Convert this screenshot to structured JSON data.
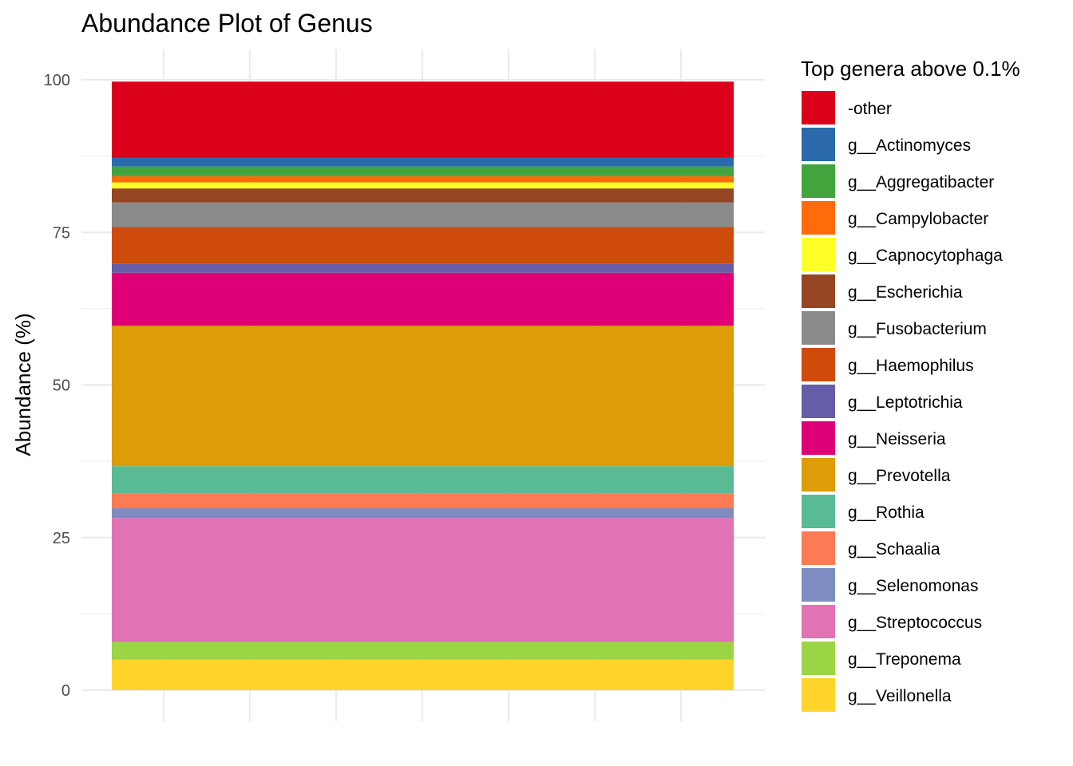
{
  "chart_data": {
    "type": "bar",
    "stacked": true,
    "title": "Abundance Plot of Genus",
    "ylabel": "Abundance (%)",
    "xlabel": "",
    "ylim": [
      0,
      100
    ],
    "yticks": [
      "0",
      "25",
      "50",
      "75",
      "100"
    ],
    "ytick_values": [
      0,
      25,
      50,
      75,
      100
    ],
    "grid": true,
    "legend_title": "Top genera above 0.1%",
    "legend_position": "right",
    "series": [
      {
        "name": "-other",
        "value": 12.5,
        "color": "#DC011A"
      },
      {
        "name": "g__Actinomyces",
        "value": 1.4,
        "color": "#2B6AAA"
      },
      {
        "name": "g__Aggregatibacter",
        "value": 1.6,
        "color": "#42A43D"
      },
      {
        "name": "g__Campylobacter",
        "value": 1.0,
        "color": "#FF6A0A"
      },
      {
        "name": "g__Capnocytophaga",
        "value": 1.0,
        "color": "#FFFF27"
      },
      {
        "name": "g__Escherichia",
        "value": 2.3,
        "color": "#954521"
      },
      {
        "name": "g__Fusobacterium",
        "value": 4.0,
        "color": "#8A8A8A"
      },
      {
        "name": "g__Haemophilus",
        "value": 6.0,
        "color": "#CE4B0C"
      },
      {
        "name": "g__Leptotrichia",
        "value": 1.5,
        "color": "#665DA8"
      },
      {
        "name": "g__Neisseria",
        "value": 8.7,
        "color": "#DF0078"
      },
      {
        "name": "g__Prevotella",
        "value": 23.0,
        "color": "#DE9D07"
      },
      {
        "name": "g__Rothia",
        "value": 4.5,
        "color": "#58BB93"
      },
      {
        "name": "g__Schaalia",
        "value": 2.4,
        "color": "#FB7B54"
      },
      {
        "name": "g__Selenomonas",
        "value": 1.6,
        "color": "#7D8CC1"
      },
      {
        "name": "g__Streptococcus",
        "value": 20.3,
        "color": "#E172B3"
      },
      {
        "name": "g__Treponema",
        "value": 2.9,
        "color": "#9BD546"
      },
      {
        "name": "g__Veillonella",
        "value": 5.0,
        "color": "#FFD42A"
      }
    ]
  }
}
